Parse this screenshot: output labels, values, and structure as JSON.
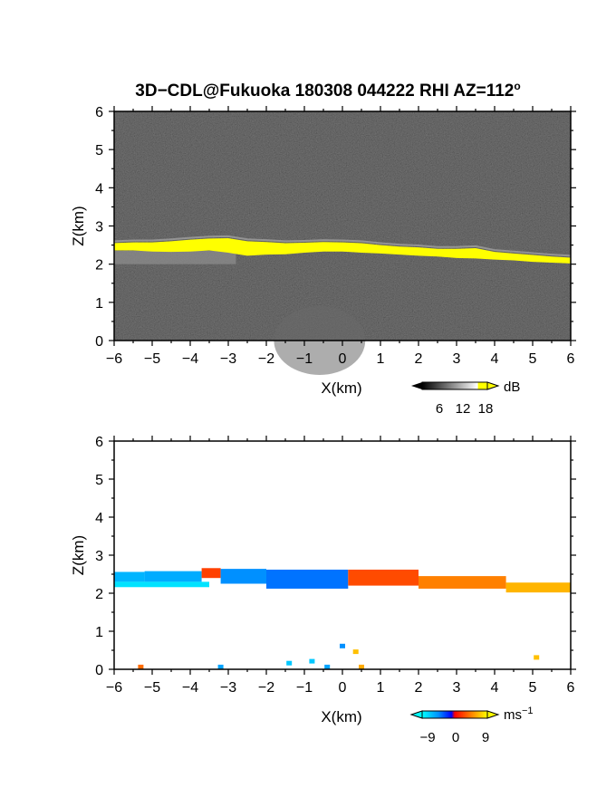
{
  "chart_data": [
    {
      "type": "heatmap",
      "title": "3D−CDL@Fukuoka 180308 044222 RHI AZ=112",
      "title_superscript": "o",
      "xlabel": "X(km)",
      "ylabel": "Z(km)",
      "xlim": [
        -6,
        6
      ],
      "ylim": [
        0,
        6
      ],
      "xticks": [
        "−6",
        "−5",
        "−4",
        "−3",
        "−2",
        "−1",
        "0",
        "1",
        "2",
        "3",
        "4",
        "5",
        "6"
      ],
      "yticks": [
        "0",
        "1",
        "2",
        "3",
        "4",
        "5",
        "6"
      ],
      "background_color": "#1e1e1e",
      "quantity": "SNR",
      "colorbar": {
        "unit": "dB",
        "ticks": [
          "6",
          "12",
          "18"
        ],
        "range": [
          0,
          21
        ],
        "saturation_color": "#ffff00"
      },
      "layer": {
        "x": [
          -6,
          -5.5,
          -5,
          -4.5,
          -4,
          -3.5,
          -3,
          -2.5,
          -2,
          -1.5,
          -1,
          -0.5,
          0,
          0.5,
          1,
          1.5,
          2,
          2.5,
          3,
          3.5,
          4,
          4.5,
          5,
          5.5,
          6
        ],
        "top_km": [
          2.55,
          2.57,
          2.57,
          2.6,
          2.64,
          2.67,
          2.68,
          2.6,
          2.58,
          2.55,
          2.56,
          2.58,
          2.57,
          2.55,
          2.5,
          2.46,
          2.44,
          2.4,
          2.4,
          2.42,
          2.32,
          2.28,
          2.24,
          2.2,
          2.17
        ],
        "bottom_km": [
          2.36,
          2.36,
          2.33,
          2.32,
          2.33,
          2.36,
          2.3,
          2.22,
          2.25,
          2.26,
          2.3,
          2.33,
          2.33,
          2.3,
          2.28,
          2.25,
          2.22,
          2.2,
          2.16,
          2.15,
          2.12,
          2.1,
          2.06,
          2.04,
          2.02
        ],
        "value_dB": "≥18"
      },
      "weak_echo_below_layer": {
        "x_range": [
          -6,
          -2.8
        ],
        "z_range": [
          2.0,
          2.35
        ],
        "value_dB": "6–12"
      },
      "near_ground_echo": {
        "x_range": [
          -1.8,
          0.6
        ],
        "z_range": [
          0,
          0.9
        ],
        "value_dB": "~6"
      }
    },
    {
      "type": "heatmap",
      "title": "",
      "xlabel": "X(km)",
      "ylabel": "Z(km)",
      "xlim": [
        -6,
        6
      ],
      "ylim": [
        0,
        6
      ],
      "xticks": [
        "−6",
        "−5",
        "−4",
        "−3",
        "−2",
        "−1",
        "0",
        "1",
        "2",
        "3",
        "4",
        "5",
        "6"
      ],
      "yticks": [
        "0",
        "1",
        "2",
        "3",
        "4",
        "5",
        "6"
      ],
      "quantity": "Doppler velocity",
      "colorbar": {
        "unit": "ms",
        "unit_superscript": "−1",
        "ticks": [
          "−9",
          "0",
          "9"
        ],
        "range": [
          -12,
          12
        ]
      },
      "segments": [
        {
          "x_range": [
            -6,
            -5.2
          ],
          "z_top": 2.56,
          "z_bottom": 2.3,
          "velocity": -8
        },
        {
          "x_range": [
            -5.2,
            -3.7
          ],
          "z_top": 2.58,
          "z_bottom": 2.3,
          "velocity": -7.5
        },
        {
          "x_range": [
            -6,
            -3.5
          ],
          "z_top": 2.3,
          "z_bottom": 2.16,
          "velocity": -10.5
        },
        {
          "x_range": [
            -3.7,
            -3.2
          ],
          "z_top": 2.66,
          "z_bottom": 2.4,
          "velocity": 3
        },
        {
          "x_range": [
            -3.2,
            -2.0
          ],
          "z_top": 2.64,
          "z_bottom": 2.25,
          "velocity": -6
        },
        {
          "x_range": [
            -2.0,
            0.15
          ],
          "z_top": 2.62,
          "z_bottom": 2.12,
          "velocity": -5
        },
        {
          "x_range": [
            0.15,
            2.0
          ],
          "z_top": 2.62,
          "z_bottom": 2.2,
          "velocity": 3.5
        },
        {
          "x_range": [
            2.0,
            4.3
          ],
          "z_top": 2.45,
          "z_bottom": 2.12,
          "velocity": 6
        },
        {
          "x_range": [
            4.3,
            6.0
          ],
          "z_top": 2.28,
          "z_bottom": 2.02,
          "velocity": 8.5
        }
      ],
      "near_ground_points": [
        {
          "x": -5.3,
          "z": 0.05,
          "velocity": 5
        },
        {
          "x": -3.2,
          "z": 0.05,
          "velocity": -7
        },
        {
          "x": -1.4,
          "z": 0.15,
          "velocity": -9
        },
        {
          "x": -0.8,
          "z": 0.2,
          "velocity": -9
        },
        {
          "x": -0.4,
          "z": 0.05,
          "velocity": -7
        },
        {
          "x": 0.0,
          "z": 0.6,
          "velocity": -6
        },
        {
          "x": 0.35,
          "z": 0.45,
          "velocity": 9
        },
        {
          "x": 0.5,
          "z": 0.05,
          "velocity": 8
        },
        {
          "x": 5.1,
          "z": 0.3,
          "velocity": 9
        }
      ]
    }
  ]
}
